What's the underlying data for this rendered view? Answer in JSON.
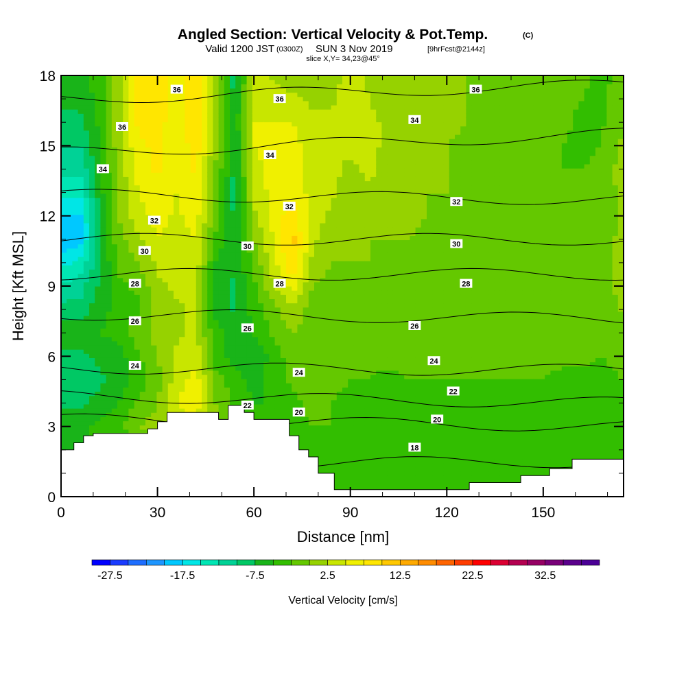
{
  "title": {
    "main": "Angled Section: Vertical Velocity & Pot.Temp.",
    "unit_tag": "(C)",
    "valid_prefix": "Valid 1200 JST",
    "valid_utc": "(0300Z)",
    "valid_date": "SUN 3 Nov 2019",
    "forecast": "[9hrFcst@2144z]",
    "slice": "slice X,Y= 34,23@45°"
  },
  "chart_data": {
    "type": "heatmap",
    "xlabel": "Distance [nm]",
    "ylabel": "Height [Kft MSL]",
    "xlim": [
      0,
      175
    ],
    "ylim": [
      0,
      18
    ],
    "x_ticks": [
      0,
      30,
      60,
      90,
      120,
      150
    ],
    "x_tick_labels": [
      "0",
      "30",
      "60",
      "90",
      "120",
      "150"
    ],
    "y_ticks": [
      0,
      3,
      6,
      9,
      12,
      15,
      18
    ],
    "y_tick_labels": [
      "0",
      "3",
      "6",
      "9",
      "12",
      "15",
      "18"
    ],
    "colorbar": {
      "title": "Vertical Velocity [cm/s]",
      "min": -30,
      "max": 40,
      "step": 2.5,
      "tick_values": [
        -27.5,
        -17.5,
        -7.5,
        2.5,
        12.5,
        22.5,
        32.5
      ],
      "tick_labels": [
        "-27.5",
        "-17.5",
        "-7.5",
        "2.5",
        "12.5",
        "22.5",
        "32.5"
      ],
      "colors": [
        "#0000ff",
        "#1a3cff",
        "#1e6eff",
        "#1e96ff",
        "#00c8ff",
        "#00e6e6",
        "#00e6b4",
        "#00d296",
        "#00c864",
        "#19b419",
        "#32be00",
        "#64c800",
        "#96d200",
        "#c8e600",
        "#f0f000",
        "#ffe600",
        "#ffc800",
        "#ffaa00",
        "#ff8c00",
        "#ff6400",
        "#ff3c00",
        "#ff0000",
        "#dc0032",
        "#b40050",
        "#960064",
        "#780078",
        "#5a008c",
        "#4b0096"
      ]
    },
    "terrain": [
      [
        0,
        2.0
      ],
      [
        4,
        2.0
      ],
      [
        4,
        2.3
      ],
      [
        7,
        2.3
      ],
      [
        7,
        2.6
      ],
      [
        10,
        2.6
      ],
      [
        10,
        2.7
      ],
      [
        27,
        2.7
      ],
      [
        27,
        2.9
      ],
      [
        30,
        2.9
      ],
      [
        30,
        3.2
      ],
      [
        33,
        3.2
      ],
      [
        33,
        3.6
      ],
      [
        49,
        3.6
      ],
      [
        49,
        3.3
      ],
      [
        52,
        3.3
      ],
      [
        52,
        3.9
      ],
      [
        57,
        3.9
      ],
      [
        57,
        3.6
      ],
      [
        60,
        3.6
      ],
      [
        60,
        3.3
      ],
      [
        71,
        3.3
      ],
      [
        71,
        2.6
      ],
      [
        74,
        2.6
      ],
      [
        74,
        2.0
      ],
      [
        77,
        2.0
      ],
      [
        77,
        1.7
      ],
      [
        80,
        1.7
      ],
      [
        80,
        1.0
      ],
      [
        85,
        1.0
      ],
      [
        85,
        0.3
      ],
      [
        127,
        0.3
      ],
      [
        127,
        0.6
      ],
      [
        143,
        0.6
      ],
      [
        143,
        0.9
      ],
      [
        152,
        0.9
      ],
      [
        152,
        1.2
      ],
      [
        159,
        1.2
      ],
      [
        159,
        1.6
      ],
      [
        175,
        1.6
      ]
    ],
    "velocity_field": {
      "columns": [
        {
          "x": 0,
          "v": [
            -3.0,
            -3.5,
            -5.0,
            -6.0,
            -8.0,
            -10.0,
            -8.0,
            -6.0,
            -9.0,
            -12.0,
            -16.0,
            -20.0,
            -18.0,
            -14.0,
            -12.0,
            -10.0,
            -8.0,
            -7.0,
            -6.0
          ]
        },
        {
          "x": 6,
          "v": [
            -3.0,
            -3.5,
            -5.5,
            -6.0,
            -8.0,
            -9.0,
            -8.0,
            -6.0,
            -9.0,
            -11.0,
            -14.0,
            -19.0,
            -18.0,
            -14.0,
            -12.0,
            -10.0,
            -8.0,
            -7.0,
            -6.0
          ]
        },
        {
          "x": 12,
          "v": [
            -3.0,
            -3.5,
            -5.0,
            -4.0,
            -6.5,
            -8.0,
            -7.0,
            -5.0,
            -6.0,
            -7.0,
            -8.0,
            -7.0,
            -8.0,
            -6.0,
            -5.5,
            -5.0,
            -4.5,
            -4.0,
            -3.5
          ]
        },
        {
          "x": 18,
          "v": [
            -3.0,
            -3.5,
            -5.0,
            -3.0,
            -5.0,
            -6.5,
            -6.0,
            -4.0,
            -4.0,
            -3.0,
            -2.0,
            -1.0,
            0.0,
            0.5,
            1.0,
            1.5,
            2.0,
            2.0,
            2.0
          ]
        },
        {
          "x": 24,
          "v": [
            -3.0,
            -3.5,
            -5.0,
            0.0,
            -2.0,
            -4.0,
            -3.0,
            -1.0,
            -3.0,
            -2.0,
            0.0,
            2.0,
            4.0,
            5.0,
            6.0,
            7.0,
            8.0,
            9.0,
            10.0
          ]
        },
        {
          "x": 30,
          "v": [
            -3.0,
            -3.5,
            -5.0,
            1.0,
            0.0,
            -1.0,
            0.0,
            1.0,
            1.0,
            2.0,
            3.0,
            5.0,
            6.0,
            7.0,
            8.0,
            8.0,
            8.5,
            9.0,
            9.0
          ]
        },
        {
          "x": 36,
          "v": [
            -3.0,
            -3.5,
            -5.0,
            2.0,
            5.0,
            4.0,
            3.0,
            2.0,
            2.0,
            3.0,
            4.0,
            4.0,
            4.5,
            5.0,
            5.0,
            5.5,
            6.0,
            6.0,
            6.0
          ]
        },
        {
          "x": 42,
          "v": [
            -3.0,
            -3.5,
            -5.0,
            3.0,
            7.0,
            6.0,
            4.0,
            3.0,
            3.0,
            3.0,
            4.0,
            5.0,
            6.0,
            7.0,
            8.0,
            9.0,
            10.0,
            10.0,
            10.0
          ]
        },
        {
          "x": 48,
          "v": [
            -3.0,
            -3.5,
            -5.0,
            1.0,
            0.0,
            -1.0,
            -4.0,
            -4.0,
            -6.0,
            -6.0,
            -5.0,
            -3.0,
            -1.0,
            0.0,
            0.0,
            0.5,
            1.0,
            1.0,
            1.0
          ]
        },
        {
          "x": 54,
          "v": [
            -3.0,
            -3.5,
            -5.0,
            -2.0,
            -3.0,
            -4.0,
            -6.0,
            -6.0,
            -8.0,
            -8.0,
            -7.0,
            -8.0,
            -8.0,
            -9.0,
            -8.0,
            -8.0,
            -7.0,
            -8.0,
            -9.0
          ]
        },
        {
          "x": 60,
          "v": [
            -3.0,
            -3.5,
            -5.0,
            -4.0,
            -5.0,
            -6.0,
            -7.0,
            -5.0,
            -4.0,
            -3.0,
            -2.0,
            0.0,
            2.0,
            3.0,
            4.0,
            5.0,
            5.0,
            5.0,
            4.0
          ]
        },
        {
          "x": 66,
          "v": [
            -3.0,
            -3.5,
            -5.0,
            -3.5,
            -5.0,
            -4.0,
            -4.0,
            -2.0,
            -1.0,
            2.0,
            4.0,
            5.0,
            6.0,
            6.0,
            6.0,
            6.0,
            5.0,
            4.0,
            2.0
          ]
        },
        {
          "x": 72,
          "v": [
            -3.0,
            -3.5,
            -5.0,
            -3.0,
            -3.0,
            -2.0,
            -1.0,
            0.0,
            2.0,
            6.0,
            10.0,
            11.0,
            9.0,
            7.0,
            6.0,
            6.0,
            5.0,
            3.0,
            1.0
          ]
        },
        {
          "x": 78,
          "v": [
            -3.0,
            -3.5,
            -4.5,
            -2.5,
            -2.0,
            -2.0,
            -2.0,
            -1.0,
            -1.0,
            0.0,
            2.0,
            3.0,
            4.0,
            4.0,
            4.0,
            4.0,
            3.0,
            2.0,
            0.0
          ]
        },
        {
          "x": 84,
          "v": [
            -3.0,
            -3.5,
            -4.0,
            -2.5,
            -2.5,
            -2.0,
            -2.0,
            -1.0,
            -1.0,
            -1.0,
            0.0,
            1.0,
            2.0,
            3.0,
            3.0,
            3.0,
            3.0,
            2.0,
            1.0
          ]
        },
        {
          "x": 90,
          "v": [
            -3.0,
            -3.0,
            -3.5,
            -3.0,
            -3.0,
            -2.5,
            -2.0,
            -1.5,
            -1.0,
            0.0,
            0.0,
            0.5,
            1.0,
            1.5,
            2.0,
            3.0,
            4.0,
            4.0,
            4.0
          ]
        },
        {
          "x": 96,
          "v": [
            -3.0,
            -3.0,
            -3.5,
            -3.0,
            -3.0,
            -2.5,
            -2.0,
            -1.5,
            -1.0,
            -0.5,
            0.0,
            0.0,
            1.0,
            2.0,
            3.0,
            3.0,
            3.0,
            2.5,
            2.0
          ]
        },
        {
          "x": 102,
          "v": [
            -3.0,
            -3.0,
            -3.5,
            -3.0,
            -3.0,
            -3.0,
            -2.0,
            -2.0,
            -2.0,
            -1.0,
            -1.0,
            0.0,
            0.5,
            1.0,
            1.5,
            2.0,
            2.0,
            1.5,
            1.0
          ]
        },
        {
          "x": 108,
          "v": [
            -3.0,
            -3.0,
            -3.5,
            -3.0,
            -3.0,
            -2.5,
            -2.0,
            -1.5,
            -1.5,
            -1.0,
            -0.5,
            0.0,
            0.5,
            1.0,
            1.0,
            1.5,
            1.5,
            1.0,
            0.5
          ]
        },
        {
          "x": 114,
          "v": [
            -3.0,
            -3.0,
            -3.5,
            -3.0,
            -3.0,
            -2.5,
            -2.0,
            -1.5,
            -1.5,
            -1.0,
            -1.0,
            -0.5,
            0.0,
            0.0,
            0.5,
            0.5,
            1.0,
            0.5,
            0.0
          ]
        },
        {
          "x": 120,
          "v": [
            -3.0,
            -3.0,
            -3.5,
            -3.0,
            -3.0,
            -2.5,
            -2.0,
            -1.5,
            -1.5,
            -1.0,
            -1.0,
            -0.5,
            -0.5,
            0.0,
            0.0,
            0.0,
            0.5,
            0.0,
            0.0
          ]
        },
        {
          "x": 126,
          "v": [
            -3.0,
            -3.0,
            -3.5,
            -3.0,
            -3.0,
            -2.5,
            -2.0,
            -1.5,
            -1.5,
            -1.0,
            -1.0,
            -1.0,
            -1.0,
            -0.5,
            -0.5,
            -0.5,
            0.0,
            0.0,
            0.0
          ]
        },
        {
          "x": 132,
          "v": [
            -3.0,
            -3.0,
            -3.0,
            -3.0,
            -3.0,
            -2.5,
            -2.0,
            -1.5,
            -1.0,
            -1.0,
            -1.0,
            -1.0,
            -1.0,
            -1.0,
            -1.0,
            -1.0,
            -0.5,
            -0.5,
            0.0
          ]
        },
        {
          "x": 138,
          "v": [
            -3.0,
            -3.0,
            -3.0,
            -3.0,
            -3.0,
            -2.5,
            -2.0,
            -1.5,
            -1.0,
            -1.0,
            -1.0,
            -1.0,
            -1.5,
            -1.5,
            -1.5,
            -1.5,
            -1.0,
            -1.0,
            -0.5
          ]
        },
        {
          "x": 144,
          "v": [
            -3.0,
            -3.0,
            -3.0,
            -3.0,
            -3.0,
            -2.5,
            -2.0,
            -1.5,
            -1.0,
            -0.5,
            -0.5,
            -1.0,
            -1.5,
            -2.0,
            -2.0,
            -2.0,
            -1.5,
            -1.0,
            -0.5
          ]
        },
        {
          "x": 150,
          "v": [
            -3.0,
            -3.0,
            -3.0,
            -3.0,
            -3.0,
            -2.5,
            -2.0,
            -1.0,
            -0.5,
            -0.5,
            -1.0,
            -1.0,
            -1.5,
            -2.0,
            -2.5,
            -2.5,
            -2.0,
            -1.5,
            -1.0
          ]
        },
        {
          "x": 156,
          "v": [
            -3.0,
            -3.0,
            -3.0,
            -3.5,
            -3.5,
            -3.0,
            -2.0,
            -0.5,
            -0.5,
            -1.0,
            -1.5,
            -2.0,
            -2.0,
            -2.5,
            -2.5,
            -2.5,
            -2.0,
            -2.0,
            -1.5
          ]
        },
        {
          "x": 162,
          "v": [
            -3.0,
            -3.0,
            -3.0,
            -3.5,
            -3.5,
            -3.0,
            -2.0,
            -1.0,
            -1.0,
            -1.5,
            -2.0,
            -2.0,
            -2.0,
            -2.5,
            -2.5,
            -3.0,
            -3.0,
            -2.5,
            -2.0
          ]
        },
        {
          "x": 168,
          "v": [
            -3.0,
            -3.0,
            -3.0,
            -3.5,
            -3.5,
            -3.0,
            -2.5,
            -2.0,
            -2.0,
            -2.0,
            -2.0,
            -1.5,
            -1.5,
            -2.0,
            -2.0,
            -2.5,
            -3.0,
            -3.0,
            -3.0
          ]
        },
        {
          "x": 175,
          "v": [
            -3.0,
            -3.0,
            -3.0,
            -3.0,
            -3.0,
            -2.5,
            -2.0,
            -1.5,
            0.5,
            1.5,
            2.0,
            1.0,
            0.5,
            1.0,
            1.5,
            0.5,
            0.0,
            -1.0,
            -2.0
          ]
        }
      ]
    },
    "theta_contours": [
      {
        "value": 18,
        "y_left": 1.4,
        "y_right": 1.5
      },
      {
        "value": 20,
        "y_left": 3.3,
        "y_right": 3.0
      },
      {
        "value": 22,
        "y_left": 4.3,
        "y_right": 4.0
      },
      {
        "value": 24,
        "y_left": 5.5,
        "y_right": 5.4
      },
      {
        "value": 26,
        "y_left": 7.8,
        "y_right": 7.6
      },
      {
        "value": 28,
        "y_left": 9.5,
        "y_right": 9.5
      },
      {
        "value": 30,
        "y_left": 11.0,
        "y_right": 11.0
      },
      {
        "value": 32,
        "y_left": 12.9,
        "y_right": 12.7
      },
      {
        "value": 34,
        "y_left": 14.7,
        "y_right": 15.5
      },
      {
        "value": 36,
        "y_left": 17.0,
        "y_right": 17.6
      }
    ],
    "contour_labels": [
      {
        "text": "36",
        "x": 36,
        "y": 17.4
      },
      {
        "text": "36",
        "x": 68,
        "y": 17.0
      },
      {
        "text": "36",
        "x": 129,
        "y": 17.4
      },
      {
        "text": "36",
        "x": 19,
        "y": 15.8
      },
      {
        "text": "34",
        "x": 110,
        "y": 16.1
      },
      {
        "text": "34",
        "x": 65,
        "y": 14.6
      },
      {
        "text": "34",
        "x": 13,
        "y": 14.0
      },
      {
        "text": "32",
        "x": 71,
        "y": 12.4
      },
      {
        "text": "32",
        "x": 123,
        "y": 12.6
      },
      {
        "text": "32",
        "x": 29,
        "y": 11.8
      },
      {
        "text": "30",
        "x": 58,
        "y": 10.7
      },
      {
        "text": "30",
        "x": 123,
        "y": 10.8
      },
      {
        "text": "30",
        "x": 26,
        "y": 10.5
      },
      {
        "text": "28",
        "x": 23,
        "y": 9.1
      },
      {
        "text": "28",
        "x": 68,
        "y": 9.1
      },
      {
        "text": "28",
        "x": 126,
        "y": 9.1
      },
      {
        "text": "26",
        "x": 23,
        "y": 7.5
      },
      {
        "text": "26",
        "x": 58,
        "y": 7.2
      },
      {
        "text": "26",
        "x": 110,
        "y": 7.3
      },
      {
        "text": "24",
        "x": 23,
        "y": 5.6
      },
      {
        "text": "24",
        "x": 74,
        "y": 5.3
      },
      {
        "text": "24",
        "x": 116,
        "y": 5.8
      },
      {
        "text": "22",
        "x": 58,
        "y": 3.9
      },
      {
        "text": "22",
        "x": 122,
        "y": 4.5
      },
      {
        "text": "20",
        "x": 74,
        "y": 3.6
      },
      {
        "text": "20",
        "x": 117,
        "y": 3.3
      },
      {
        "text": "18",
        "x": 110,
        "y": 2.1
      }
    ]
  }
}
